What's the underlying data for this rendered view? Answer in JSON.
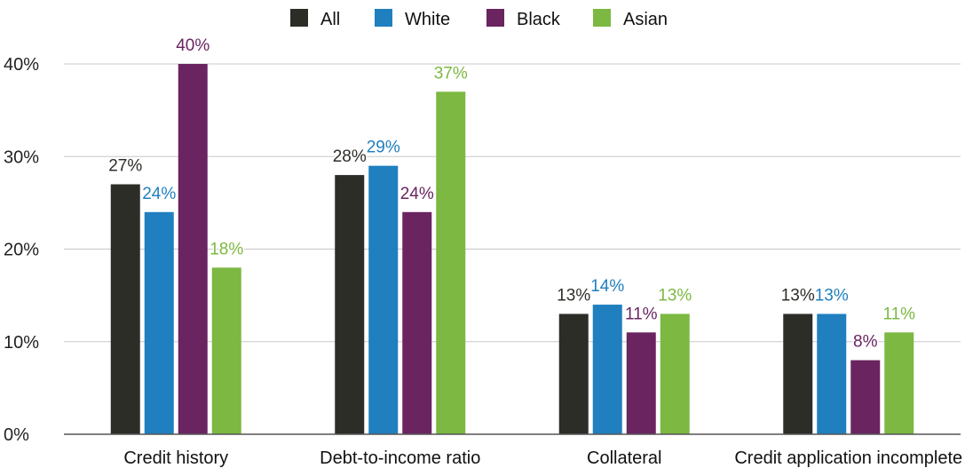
{
  "chart_data": {
    "type": "bar",
    "title": "",
    "xlabel": "",
    "ylabel": "",
    "categories": [
      "Credit history",
      "Debt-to-income ratio",
      "Collateral",
      "Credit application incomplete"
    ],
    "series": [
      {
        "name": "All",
        "color": "#2d2d28",
        "values": [
          27,
          28,
          13,
          13
        ],
        "labels": [
          "27%",
          "28%",
          "13%",
          "13%"
        ]
      },
      {
        "name": "White",
        "color": "#1f7fbf",
        "values": [
          24,
          29,
          14,
          13
        ],
        "labels": [
          "24%",
          "29%",
          "14%",
          "13%"
        ]
      },
      {
        "name": "Black",
        "color": "#6a2460",
        "values": [
          40,
          24,
          11,
          8
        ],
        "labels": [
          "40%",
          "24%",
          "11%",
          "8%"
        ]
      },
      {
        "name": "Asian",
        "color": "#7cb842",
        "values": [
          18,
          37,
          13,
          11
        ],
        "labels": [
          "18%",
          "37%",
          "13%",
          "11%"
        ]
      }
    ],
    "ylim": [
      0,
      40
    ],
    "yticks": [
      0,
      10,
      20,
      30,
      40
    ],
    "ytick_labels": [
      "0%",
      "10%",
      "20%",
      "30%",
      "40%"
    ],
    "grid": true,
    "legend": "top-center"
  }
}
